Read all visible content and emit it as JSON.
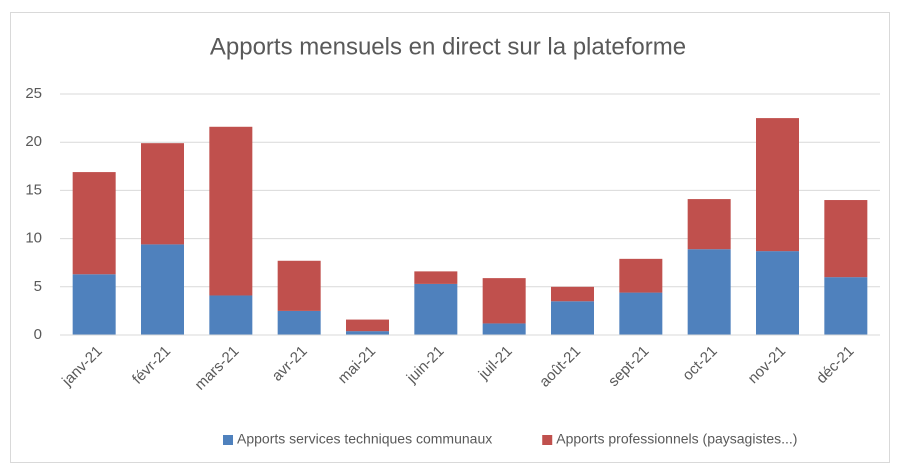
{
  "chart_data": {
    "type": "bar",
    "stacked": true,
    "title": "Apports mensuels en direct sur la plateforme",
    "categories": [
      "janv-21",
      "févr-21",
      "mars-21",
      "avr-21",
      "mai-21",
      "juin-21",
      "juil-21",
      "août-21",
      "sept-21",
      "oct-21",
      "nov-21",
      "déc-21"
    ],
    "series": [
      {
        "name": "Apports services techniques communaux",
        "color": "#4f81bd",
        "values": [
          6.3,
          9.4,
          4.1,
          2.5,
          0.4,
          5.3,
          1.2,
          3.5,
          4.4,
          8.9,
          8.7,
          6.0
        ]
      },
      {
        "name": "Apports professionnels (paysagistes...)",
        "color": "#c0504d",
        "values": [
          10.6,
          10.5,
          17.5,
          5.2,
          1.2,
          1.3,
          4.7,
          1.5,
          3.5,
          5.2,
          13.8,
          8.0
        ]
      }
    ],
    "ylim": [
      0,
      25
    ],
    "yticks": [
      0,
      5,
      10,
      15,
      20,
      25
    ],
    "grid": true,
    "legend": "bottom"
  }
}
